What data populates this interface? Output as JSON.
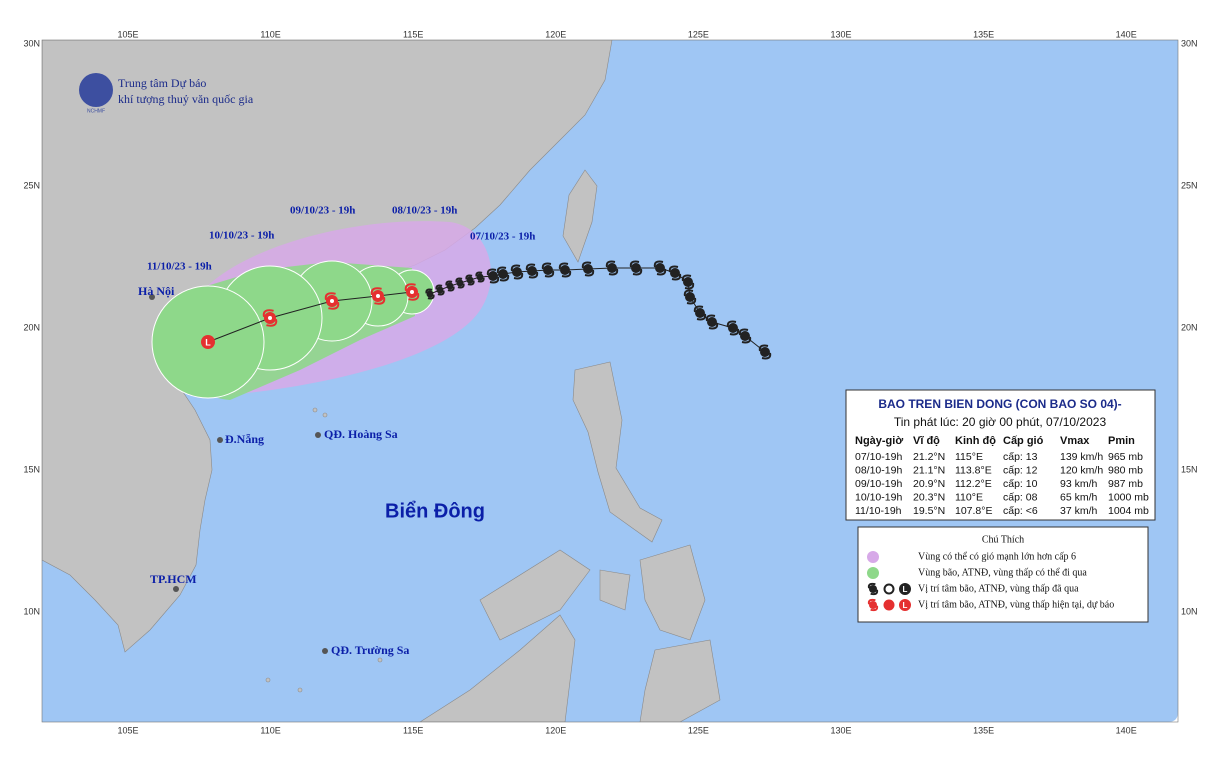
{
  "header": {
    "org_line1": "Trung tâm Dự báo",
    "org_line2": "khí tượng thuỷ văn quốc gia",
    "logo_text": "NCHMF"
  },
  "axes": {
    "lon_labels": [
      "105E",
      "110E",
      "115E",
      "120E",
      "125E",
      "130E",
      "135E",
      "140E"
    ],
    "lat_labels": [
      "30N",
      "25N",
      "20N",
      "15N",
      "10N"
    ]
  },
  "places": {
    "hanoi": "Hà Nội",
    "danang": "Đ.Nẵng",
    "hoangsa": "QĐ. Hoàng Sa",
    "hcm": "TP.HCM",
    "truongsa": "QĐ. Trường Sa",
    "sea": "Biển Đông"
  },
  "forecast_labels": [
    "07/10/23 - 19h",
    "08/10/23 - 19h",
    "09/10/23 - 19h",
    "10/10/23 - 19h",
    "11/10/23 - 19h"
  ],
  "low_symbol": "L",
  "table": {
    "title": "BAO TREN BIEN DONG (CON BAO SO 04)-",
    "subtitle": "Tin phát lúc: 20 giờ 00 phút, 07/10/2023",
    "columns": [
      "Ngày-giờ",
      "Vĩ độ",
      "Kinh độ",
      "Cấp gió",
      "Vmax",
      "Pmin"
    ],
    "rows": [
      [
        "07/10-19h",
        "21.2°N",
        "115°E",
        "cấp: 13",
        "139 km/h",
        "965 mb"
      ],
      [
        "08/10-19h",
        "21.1°N",
        "113.8°E",
        "cấp: 12",
        "120 km/h",
        "980 mb"
      ],
      [
        "09/10-19h",
        "20.9°N",
        "112.2°E",
        "cấp: 10",
        "93 km/h",
        "987 mb"
      ],
      [
        "10/10-19h",
        "20.3°N",
        "110°E",
        "cấp: 08",
        "65 km/h",
        "1000 mb"
      ],
      [
        "11/10-19h",
        "19.5°N",
        "107.8°E",
        "cấp: <6",
        "37 km/h",
        "1004 mb"
      ]
    ]
  },
  "legend": {
    "title": "Chú Thích",
    "items": [
      "Vùng có thể có gió mạnh lớn hơn cấp 6",
      "Vùng bão, ATNĐ, vùng thấp có thể đi qua",
      "Vị trí tâm bão, ATNĐ, vùng thấp đã qua",
      "Vị trí tâm bão, ATNĐ, vùng thấp hiện tại, dự báo"
    ]
  }
}
